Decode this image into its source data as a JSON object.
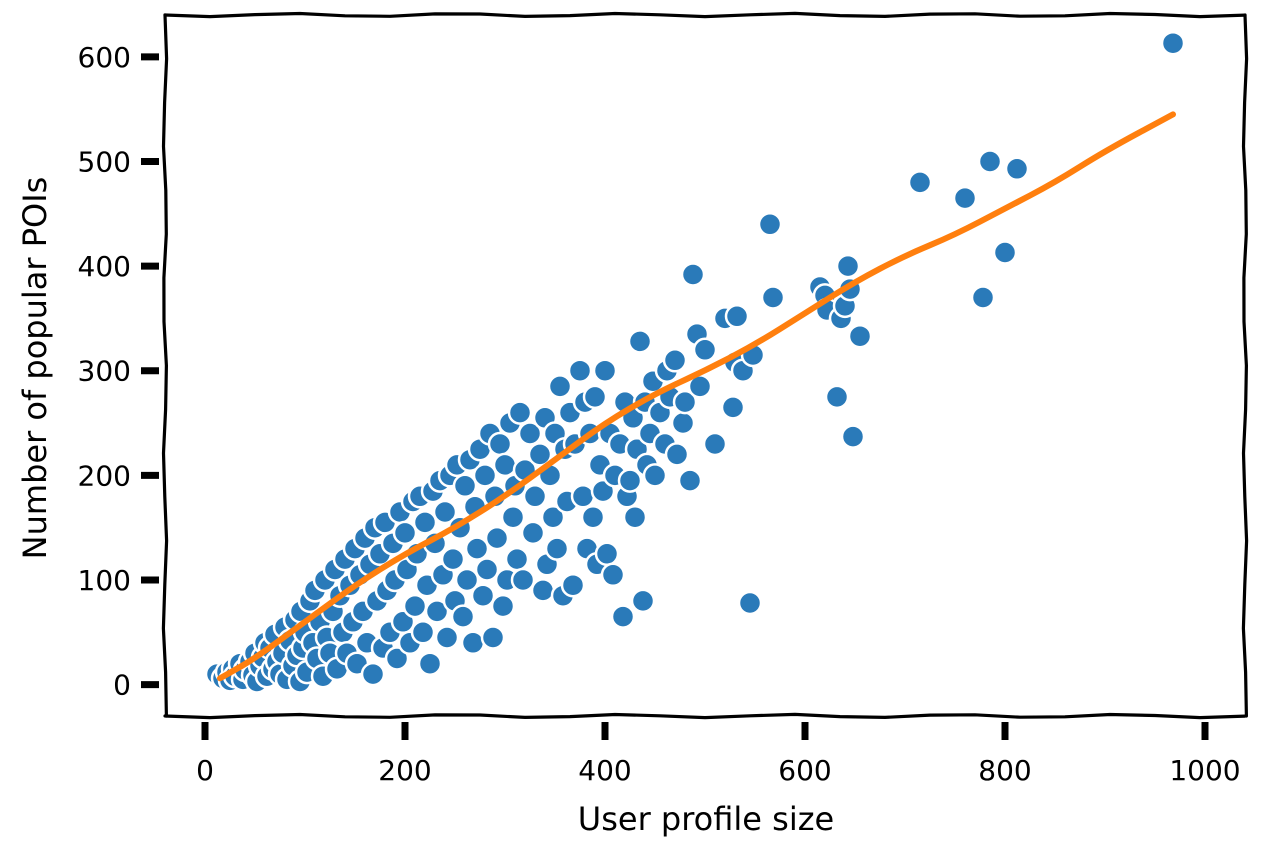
{
  "chart_data": {
    "type": "scatter",
    "title": "",
    "xlabel": "User profile size",
    "ylabel": "Number of popular POIs",
    "xlim": [
      -40,
      1040
    ],
    "ylim": [
      -30,
      640
    ],
    "xticks": [
      0,
      200,
      400,
      600,
      800,
      1000
    ],
    "yticks": [
      0,
      100,
      200,
      300,
      400,
      500,
      600
    ],
    "xtick_labels": [
      "0",
      "200",
      "400",
      "600",
      "800",
      "1000"
    ],
    "ytick_labels": [
      "0",
      "100",
      "200",
      "300",
      "400",
      "500",
      "600"
    ],
    "grid": false,
    "colors": {
      "scatter": "#2a7ab9",
      "trend": "#ff7f0e",
      "frame": "#000000",
      "marker_edge": "#ffffff"
    },
    "series": [
      {
        "kind": "scatter",
        "points": [
          [
            12,
            10
          ],
          [
            18,
            6
          ],
          [
            22,
            12
          ],
          [
            25,
            4
          ],
          [
            28,
            15
          ],
          [
            30,
            8
          ],
          [
            35,
            20
          ],
          [
            38,
            5
          ],
          [
            40,
            14
          ],
          [
            45,
            22
          ],
          [
            48,
            9
          ],
          [
            50,
            30
          ],
          [
            52,
            3
          ],
          [
            55,
            18
          ],
          [
            58,
            26
          ],
          [
            60,
            40
          ],
          [
            62,
            8
          ],
          [
            65,
            35
          ],
          [
            68,
            15
          ],
          [
            70,
            48
          ],
          [
            72,
            22
          ],
          [
            75,
            10
          ],
          [
            78,
            30
          ],
          [
            80,
            55
          ],
          [
            82,
            5
          ],
          [
            85,
            42
          ],
          [
            88,
            18
          ],
          [
            90,
            62
          ],
          [
            92,
            28
          ],
          [
            95,
            3
          ],
          [
            96,
            70
          ],
          [
            98,
            35
          ],
          [
            100,
            50
          ],
          [
            102,
            12
          ],
          [
            105,
            80
          ],
          [
            108,
            40
          ],
          [
            110,
            90
          ],
          [
            112,
            25
          ],
          [
            115,
            60
          ],
          [
            118,
            8
          ],
          [
            120,
            100
          ],
          [
            122,
            45
          ],
          [
            125,
            30
          ],
          [
            128,
            70
          ],
          [
            130,
            110
          ],
          [
            132,
            15
          ],
          [
            135,
            85
          ],
          [
            138,
            50
          ],
          [
            140,
            120
          ],
          [
            142,
            30
          ],
          [
            145,
            95
          ],
          [
            148,
            60
          ],
          [
            150,
            130
          ],
          [
            152,
            20
          ],
          [
            155,
            105
          ],
          [
            158,
            70
          ],
          [
            160,
            140
          ],
          [
            162,
            40
          ],
          [
            165,
            115
          ],
          [
            168,
            10
          ],
          [
            170,
            150
          ],
          [
            172,
            80
          ],
          [
            175,
            125
          ],
          [
            178,
            35
          ],
          [
            180,
            155
          ],
          [
            182,
            90
          ],
          [
            185,
            50
          ],
          [
            188,
            135
          ],
          [
            190,
            100
          ],
          [
            192,
            25
          ],
          [
            195,
            165
          ],
          [
            198,
            60
          ],
          [
            200,
            145
          ],
          [
            202,
            110
          ],
          [
            205,
            40
          ],
          [
            208,
            175
          ],
          [
            210,
            75
          ],
          [
            212,
            125
          ],
          [
            215,
            180
          ],
          [
            218,
            50
          ],
          [
            220,
            155
          ],
          [
            222,
            95
          ],
          [
            225,
            20
          ],
          [
            228,
            185
          ],
          [
            230,
            135
          ],
          [
            232,
            70
          ],
          [
            235,
            195
          ],
          [
            238,
            105
          ],
          [
            240,
            165
          ],
          [
            242,
            45
          ],
          [
            245,
            200
          ],
          [
            248,
            120
          ],
          [
            250,
            80
          ],
          [
            252,
            210
          ],
          [
            255,
            150
          ],
          [
            258,
            65
          ],
          [
            260,
            190
          ],
          [
            262,
            100
          ],
          [
            265,
            215
          ],
          [
            268,
            40
          ],
          [
            270,
            170
          ],
          [
            272,
            130
          ],
          [
            275,
            225
          ],
          [
            278,
            85
          ],
          [
            280,
            200
          ],
          [
            282,
            110
          ],
          [
            285,
            240
          ],
          [
            288,
            45
          ],
          [
            290,
            180
          ],
          [
            292,
            140
          ],
          [
            295,
            230
          ],
          [
            298,
            75
          ],
          [
            300,
            210
          ],
          [
            302,
            100
          ],
          [
            305,
            250
          ],
          [
            308,
            160
          ],
          [
            310,
            190
          ],
          [
            312,
            120
          ],
          [
            315,
            260
          ],
          [
            318,
            100
          ],
          [
            320,
            205
          ],
          [
            325,
            240
          ],
          [
            328,
            145
          ],
          [
            330,
            180
          ],
          [
            335,
            220
          ],
          [
            338,
            90
          ],
          [
            340,
            255
          ],
          [
            342,
            115
          ],
          [
            345,
            200
          ],
          [
            348,
            160
          ],
          [
            350,
            240
          ],
          [
            352,
            130
          ],
          [
            355,
            285
          ],
          [
            358,
            85
          ],
          [
            360,
            225
          ],
          [
            362,
            175
          ],
          [
            365,
            260
          ],
          [
            368,
            95
          ],
          [
            370,
            230
          ],
          [
            375,
            300
          ],
          [
            378,
            180
          ],
          [
            380,
            270
          ],
          [
            382,
            130
          ],
          [
            385,
            240
          ],
          [
            388,
            160
          ],
          [
            390,
            275
          ],
          [
            392,
            115
          ],
          [
            395,
            210
          ],
          [
            398,
            185
          ],
          [
            400,
            300
          ],
          [
            402,
            125
          ],
          [
            405,
            240
          ],
          [
            408,
            105
          ],
          [
            410,
            200
          ],
          [
            415,
            230
          ],
          [
            418,
            65
          ],
          [
            420,
            270
          ],
          [
            422,
            180
          ],
          [
            425,
            195
          ],
          [
            428,
            255
          ],
          [
            430,
            160
          ],
          [
            432,
            225
          ],
          [
            435,
            328
          ],
          [
            438,
            80
          ],
          [
            440,
            270
          ],
          [
            442,
            210
          ],
          [
            445,
            240
          ],
          [
            448,
            290
          ],
          [
            450,
            200
          ],
          [
            455,
            260
          ],
          [
            460,
            230
          ],
          [
            462,
            300
          ],
          [
            465,
            275
          ],
          [
            470,
            310
          ],
          [
            472,
            220
          ],
          [
            478,
            250
          ],
          [
            480,
            270
          ],
          [
            485,
            195
          ],
          [
            488,
            392
          ],
          [
            492,
            335
          ],
          [
            495,
            285
          ],
          [
            500,
            320
          ],
          [
            510,
            230
          ],
          [
            520,
            350
          ],
          [
            528,
            265
          ],
          [
            530,
            308
          ],
          [
            532,
            352
          ],
          [
            538,
            300
          ],
          [
            545,
            78
          ],
          [
            548,
            315
          ],
          [
            565,
            440
          ],
          [
            568,
            370
          ],
          [
            615,
            380
          ],
          [
            620,
            372
          ],
          [
            622,
            358
          ],
          [
            632,
            275
          ],
          [
            636,
            350
          ],
          [
            640,
            362
          ],
          [
            643,
            400
          ],
          [
            645,
            378
          ],
          [
            648,
            237
          ],
          [
            655,
            333
          ],
          [
            715,
            480
          ],
          [
            760,
            465
          ],
          [
            778,
            370
          ],
          [
            785,
            500
          ],
          [
            800,
            413
          ],
          [
            812,
            493
          ],
          [
            968,
            613
          ]
        ]
      },
      {
        "kind": "line",
        "points": [
          [
            15,
            6
          ],
          [
            50,
            25
          ],
          [
            100,
            60
          ],
          [
            150,
            95
          ],
          [
            200,
            125
          ],
          [
            250,
            150
          ],
          [
            300,
            180
          ],
          [
            350,
            215
          ],
          [
            400,
            250
          ],
          [
            450,
            278
          ],
          [
            500,
            300
          ],
          [
            550,
            325
          ],
          [
            600,
            355
          ],
          [
            650,
            385
          ],
          [
            700,
            410
          ],
          [
            750,
            430
          ],
          [
            800,
            455
          ],
          [
            850,
            480
          ],
          [
            900,
            510
          ],
          [
            968,
            545
          ]
        ]
      }
    ]
  }
}
